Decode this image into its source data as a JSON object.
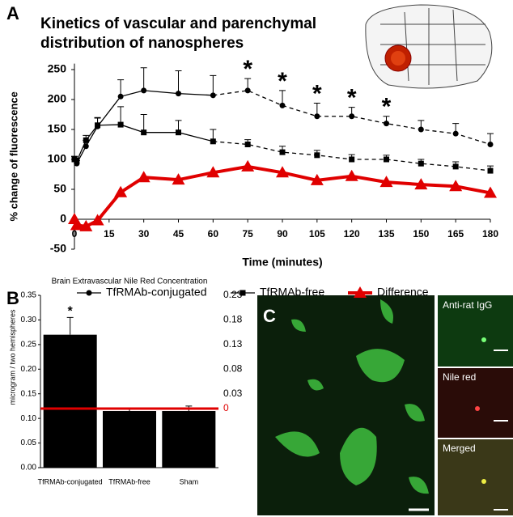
{
  "chart_data": [
    {
      "type": "line",
      "title": [
        "Kinetics of vascular and parenchymal",
        "distribution of nanospheres"
      ],
      "xlabel": "Time (minutes)",
      "ylabel": "% change of fluorescence",
      "x": [
        0,
        1,
        5,
        10,
        20,
        30,
        45,
        60,
        75,
        90,
        105,
        120,
        135,
        150,
        165,
        180
      ],
      "xlim": [
        0,
        180
      ],
      "xticks": [
        0,
        15,
        30,
        45,
        60,
        75,
        90,
        105,
        120,
        135,
        150,
        165,
        180
      ],
      "ylim": [
        -50,
        260
      ],
      "yticks": [
        -50,
        0,
        50,
        100,
        150,
        200,
        250
      ],
      "dashed_from": 60,
      "series": [
        {
          "name": "TfRMAb-conjugated",
          "color": "#000000",
          "marker": "circle",
          "values": [
            100,
            93,
            122,
            155,
            205,
            215,
            210,
            207,
            215,
            190,
            172,
            172,
            160,
            150,
            143,
            125
          ],
          "errors": [
            5,
            5,
            10,
            15,
            28,
            38,
            38,
            33,
            20,
            25,
            22,
            15,
            12,
            15,
            17,
            18
          ]
        },
        {
          "name": "TfRMAb-free",
          "color": "#000000",
          "marker": "square",
          "values": [
            100,
            97,
            132,
            157,
            158,
            145,
            145,
            130,
            125,
            112,
            107,
            100,
            100,
            93,
            88,
            81
          ],
          "errors": [
            5,
            5,
            8,
            12,
            30,
            30,
            20,
            20,
            8,
            10,
            8,
            8,
            7,
            7,
            8,
            8
          ]
        },
        {
          "name": "Difference",
          "color": "#e00000",
          "marker": "triangle",
          "values": [
            0,
            -10,
            -12,
            -2,
            45,
            70,
            66,
            78,
            88,
            78,
            65,
            72,
            62,
            58,
            55,
            44
          ]
        }
      ],
      "annotations": [
        {
          "x": 75,
          "text": "*"
        },
        {
          "x": 90,
          "text": "*"
        },
        {
          "x": 105,
          "text": "*"
        },
        {
          "x": 120,
          "text": "*"
        },
        {
          "x": 135,
          "text": "*"
        }
      ],
      "legend": "bottom"
    },
    {
      "type": "bar",
      "title": "Brain Extravascular Nile Red Concentration",
      "ylabel": "microgram / two hemispheres",
      "categories": [
        "TfRMAb-conjugated",
        "TfRMAb-free",
        "Sham"
      ],
      "values": [
        0.27,
        0.115,
        0.115
      ],
      "errors": [
        0.035,
        0.006,
        0.01
      ],
      "color": "#000000",
      "ylim": [
        0,
        0.35
      ],
      "yticks": [
        {
          "value": 0,
          "label": "0.00"
        },
        0.05,
        {
          "value": 0.1,
          "label": "0.10"
        },
        0.15,
        {
          "value": 0.2,
          "label": "0.20"
        },
        0.25,
        {
          "value": 0.3,
          "label": "0.30"
        },
        0.35
      ],
      "y2lim": [
        -0.12,
        0.23
      ],
      "y2ticks": [
        0,
        0.03,
        0.08,
        0.13,
        0.18,
        0.23
      ],
      "y2_reference": {
        "value": 0,
        "color": "#e00000"
      },
      "annotations": [
        {
          "category": "TfRMAb-conjugated",
          "text": "*"
        }
      ]
    }
  ],
  "panel_labels": [
    "A",
    "B",
    "C"
  ],
  "image_labels": [
    "Anti-rat IgG",
    "Nile red",
    "Merged"
  ]
}
